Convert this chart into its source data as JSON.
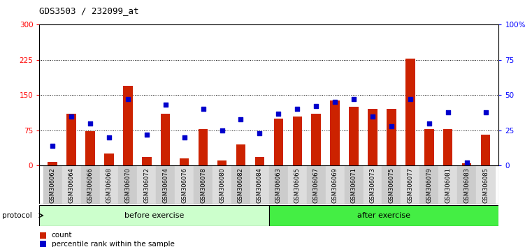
{
  "title": "GDS3503 / 232099_at",
  "samples": [
    "GSM306062",
    "GSM306064",
    "GSM306066",
    "GSM306068",
    "GSM306070",
    "GSM306072",
    "GSM306074",
    "GSM306076",
    "GSM306078",
    "GSM306080",
    "GSM306082",
    "GSM306084",
    "GSM306063",
    "GSM306065",
    "GSM306067",
    "GSM306069",
    "GSM306071",
    "GSM306073",
    "GSM306075",
    "GSM306077",
    "GSM306079",
    "GSM306081",
    "GSM306083",
    "GSM306085"
  ],
  "counts": [
    8,
    110,
    73,
    25,
    170,
    18,
    110,
    15,
    78,
    10,
    45,
    18,
    100,
    105,
    110,
    138,
    125,
    120,
    120,
    228,
    78,
    78,
    5,
    65
  ],
  "percentile_ranks": [
    14,
    35,
    30,
    20,
    47,
    22,
    43,
    20,
    40,
    25,
    33,
    23,
    37,
    40,
    42,
    45,
    47,
    35,
    28,
    47,
    30,
    38,
    2,
    38
  ],
  "n_before": 12,
  "n_after": 12,
  "before_color": "#ccffcc",
  "after_color": "#44ee44",
  "bar_color": "#cc2200",
  "dot_color": "#0000cc",
  "col_even_color": "#cccccc",
  "col_odd_color": "#dddddd",
  "protocol_label": "protocol",
  "before_label": "before exercise",
  "after_label": "after exercise",
  "legend_count": "count",
  "legend_pct": "percentile rank within the sample",
  "ylim_left": [
    0,
    300
  ],
  "ylim_right": [
    0,
    100
  ],
  "yticks_left": [
    0,
    75,
    150,
    225,
    300
  ],
  "ytick_labels_left": [
    "0",
    "75",
    "150",
    "225",
    "300"
  ],
  "yticks_right": [
    0,
    25,
    50,
    75,
    100
  ],
  "ytick_labels_right": [
    "0",
    "25",
    "50",
    "75",
    "100%"
  ],
  "hgrid_vals": [
    75,
    150,
    225
  ]
}
